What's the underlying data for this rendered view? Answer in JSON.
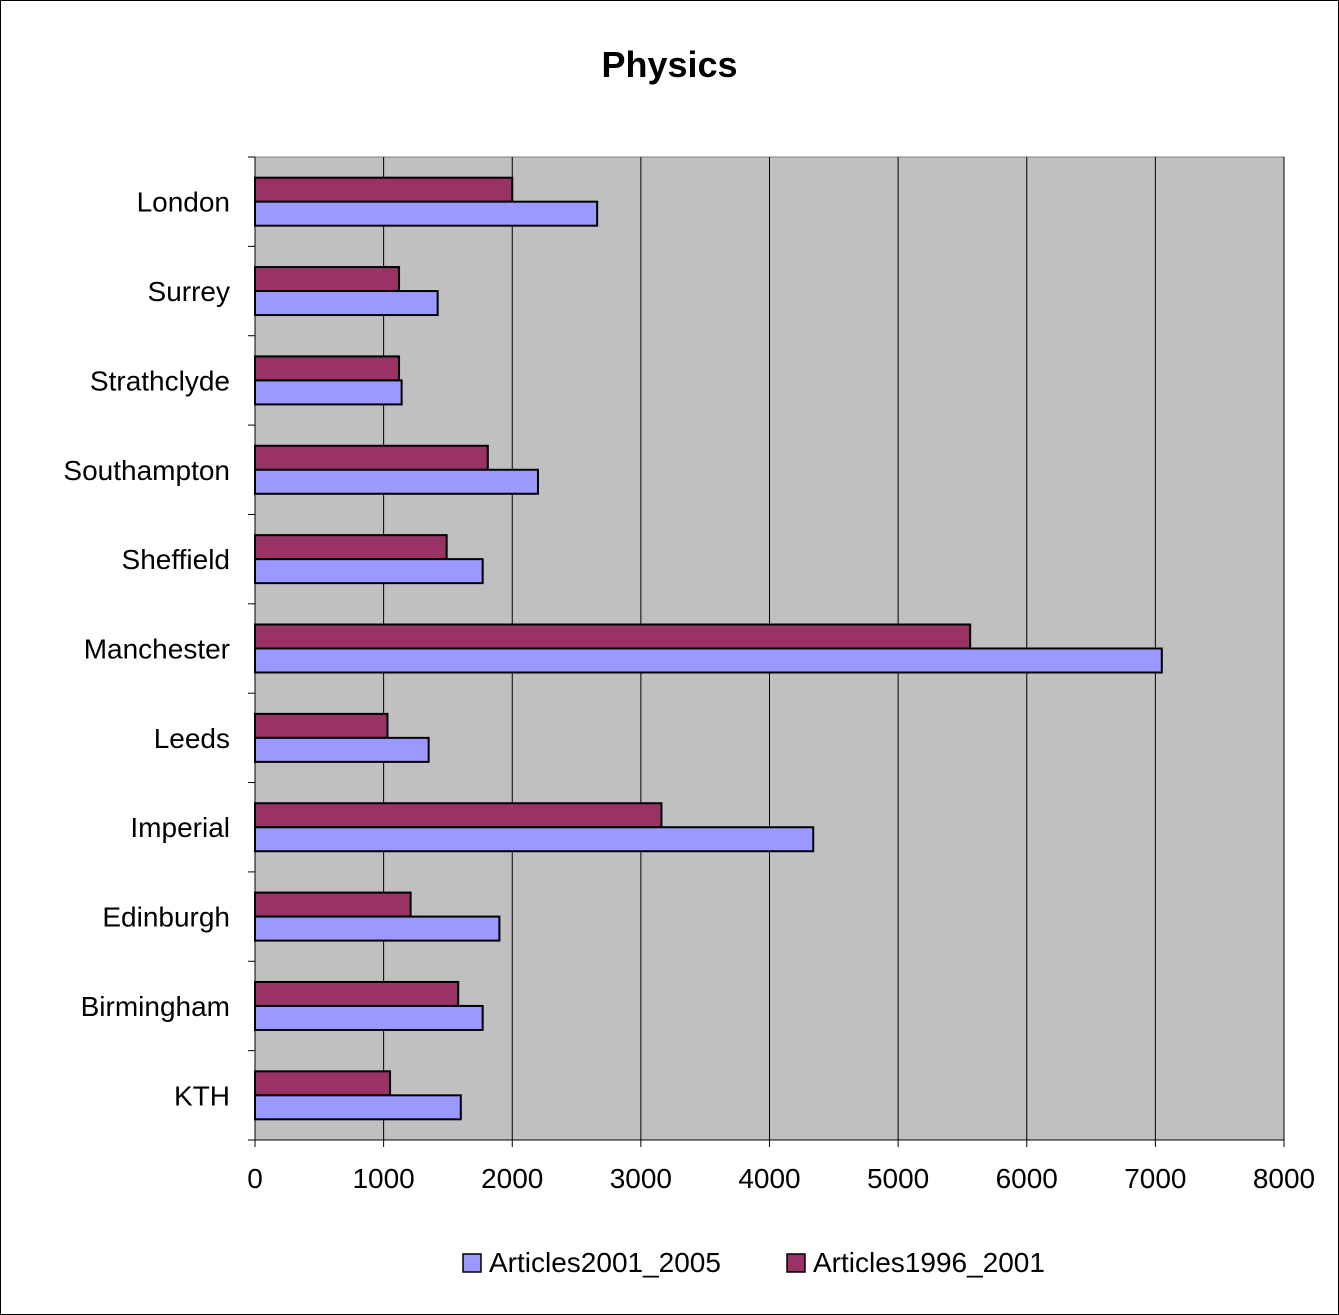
{
  "chart_data": {
    "type": "bar",
    "orientation": "horizontal",
    "title": "Physics",
    "categories": [
      "London",
      "Surrey",
      "Strathclyde",
      "Southampton",
      "Sheffield",
      "Manchester",
      "Leeds",
      "Imperial",
      "Edinburgh",
      "Birmingham",
      "KTH"
    ],
    "series": [
      {
        "name": "Articles1996_2001",
        "color": "#993366",
        "values": [
          2000,
          1120,
          1120,
          1810,
          1490,
          5560,
          1030,
          3160,
          1210,
          1580,
          1050
        ]
      },
      {
        "name": "Articles2001_2005",
        "color": "#9999ff",
        "values": [
          2660,
          1420,
          1140,
          2200,
          1770,
          7050,
          1350,
          4340,
          1900,
          1770,
          1600
        ]
      }
    ],
    "legend_order": [
      "Articles2001_2005",
      "Articles1996_2001"
    ],
    "xlim": [
      0,
      8000
    ],
    "xticks": [
      0,
      1000,
      2000,
      3000,
      4000,
      5000,
      6000,
      7000,
      8000
    ],
    "xtick_labels": [
      "0",
      "1000",
      "2000",
      "3000",
      "4000",
      "5000",
      "6000",
      "7000",
      "8000"
    ],
    "grid": "vertical",
    "plot_background": "#c0c0c0",
    "legend_position": "bottom"
  }
}
